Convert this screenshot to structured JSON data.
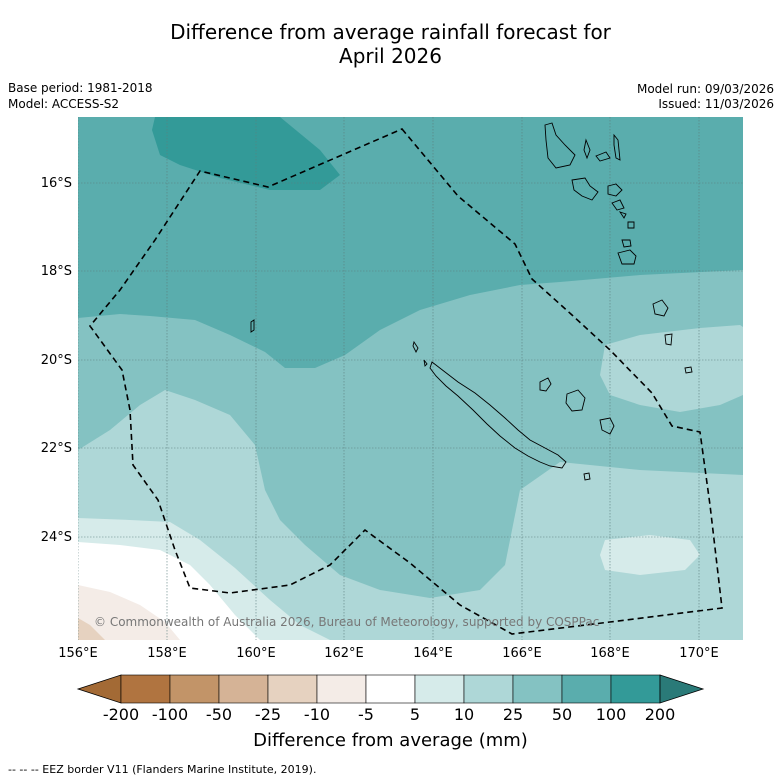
{
  "header": {
    "title_line1": "Difference from average rainfall forecast for",
    "title_line2": "April 2026",
    "base_period": "Base period: 1981-2018",
    "model": "Model: ACCESS-S2",
    "model_run": "Model run: 09/03/2026",
    "issued": "Issued: 11/03/2026"
  },
  "map": {
    "lat_ticks": [
      "16°S",
      "18°S",
      "20°S",
      "22°S",
      "24°S"
    ],
    "lon_ticks": [
      "156°E",
      "158°E",
      "160°E",
      "162°E",
      "164°E",
      "166°E",
      "168°E",
      "170°E"
    ],
    "copyright": "© Commonwealth of Australia 2026, Bureau of Meteorology, supported by COSPPac",
    "features": [
      "New Caledonia",
      "Vanuatu",
      "Loyalty Islands",
      "EEZ border"
    ]
  },
  "colorbar": {
    "labels": [
      "-200",
      "-100",
      "-50",
      "-25",
      "-10",
      "-5",
      "5",
      "10",
      "25",
      "50",
      "100",
      "200"
    ],
    "colors": [
      "#a36a35",
      "#b07440",
      "#c29468",
      "#d5b396",
      "#e6d2c0",
      "#f4ece7",
      "#ffffff",
      "#d6ebea",
      "#aed7d7",
      "#84c2c2",
      "#5aadad",
      "#339a98",
      "#2a7a78"
    ],
    "title": "Difference from average (mm)"
  },
  "footer": {
    "legend": "--  --  -- EEZ border V11 (Flanders Marine Institute, 2019)."
  }
}
